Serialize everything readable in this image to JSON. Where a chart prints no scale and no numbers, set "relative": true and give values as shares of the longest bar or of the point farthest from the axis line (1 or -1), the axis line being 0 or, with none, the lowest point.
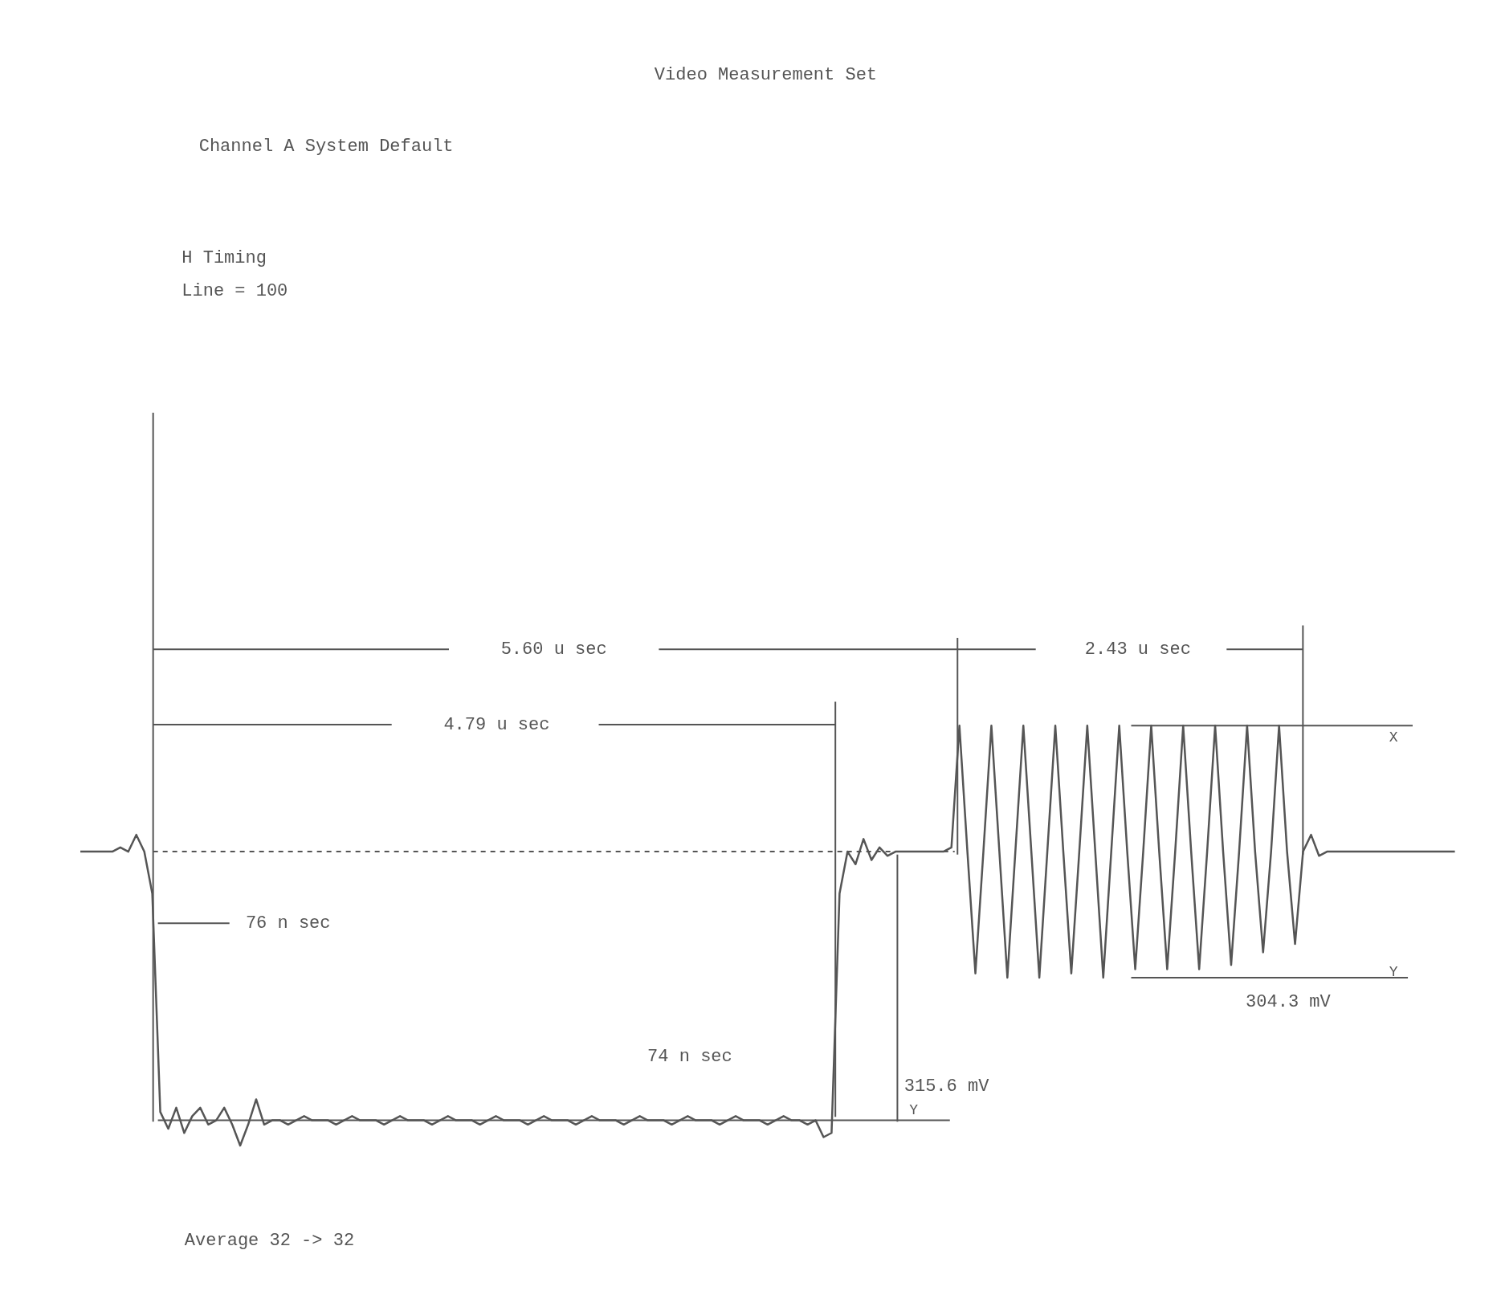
{
  "chart_data": {
    "type": "line",
    "relative": true,
    "tick_labels": false,
    "title": "Video Measurement Set",
    "categories": [
      null,
      null,
      null,
      null,
      null,
      null,
      null,
      null,
      null,
      null,
      null,
      null,
      null,
      null,
      null,
      null,
      null,
      null,
      null,
      null,
      null,
      null,
      null,
      null,
      null,
      null,
      null,
      null,
      null,
      null,
      null,
      null,
      null,
      null,
      null,
      null,
      null,
      null,
      null,
      null,
      null,
      null,
      null,
      null,
      null,
      null,
      null,
      null,
      null,
      null,
      null,
      null,
      null,
      null,
      null,
      null,
      null,
      null,
      null,
      null,
      null,
      null,
      null,
      null,
      null,
      null,
      null,
      null,
      null,
      null,
      null,
      null,
      null,
      null,
      null,
      null,
      null,
      null,
      null,
      null,
      null,
      null,
      null,
      null,
      null,
      null,
      null,
      null,
      null,
      null,
      null,
      null,
      null,
      null,
      null,
      null,
      null,
      null,
      null,
      null,
      null,
      null,
      null,
      null,
      null,
      null,
      null,
      null,
      null,
      null,
      null,
      null,
      null,
      null,
      null,
      null,
      null,
      null,
      null,
      null,
      null,
      null,
      null,
      null,
      null,
      null,
      null,
      null,
      null,
      null,
      null,
      null,
      null,
      null,
      null,
      null,
      null,
      null,
      null,
      null,
      null,
      null,
      null,
      null,
      null,
      null,
      null,
      null,
      null,
      null,
      null,
      null,
      null,
      null,
      null,
      null,
      null,
      null,
      null,
      null,
      null,
      null,
      null,
      null,
      null,
      null,
      null,
      null,
      null,
      null,
      null,
      null,
      null
    ],
    "series": [
      {
        "color": "#555555",
        "line_style": "solid",
        "values": [
          0.7,
          0.7,
          0.7,
          0.7,
          0.7,
          0.71,
          0.7,
          0.74,
          0.7,
          0.6,
          0.08,
          0.04,
          0.09,
          0.03,
          0.07,
          0.09,
          0.05,
          0.06,
          0.09,
          0.05,
          0.0,
          0.05,
          0.11,
          0.05,
          0.06,
          0.06,
          0.05,
          0.06,
          0.07,
          0.06,
          0.06,
          0.06,
          0.05,
          0.06,
          0.07,
          0.06,
          0.06,
          0.06,
          0.05,
          0.06,
          0.07,
          0.06,
          0.06,
          0.06,
          0.05,
          0.06,
          0.07,
          0.06,
          0.06,
          0.06,
          0.05,
          0.06,
          0.07,
          0.06,
          0.06,
          0.06,
          0.05,
          0.06,
          0.07,
          0.06,
          0.06,
          0.06,
          0.05,
          0.06,
          0.07,
          0.06,
          0.06,
          0.06,
          0.05,
          0.06,
          0.07,
          0.06,
          0.06,
          0.06,
          0.05,
          0.06,
          0.07,
          0.06,
          0.06,
          0.06,
          0.05,
          0.06,
          0.07,
          0.06,
          0.06,
          0.06,
          0.05,
          0.06,
          0.07,
          0.06,
          0.06,
          0.05,
          0.06,
          0.02,
          0.03,
          0.6,
          0.7,
          0.67,
          0.73,
          0.68,
          0.71,
          0.69,
          0.7,
          0.7,
          0.7,
          0.7,
          0.7,
          0.7,
          0.7,
          0.71,
          1.0,
          0.7,
          0.41,
          0.7,
          1.0,
          0.7,
          0.4,
          0.7,
          1.0,
          0.7,
          0.4,
          0.7,
          1.0,
          0.7,
          0.41,
          0.7,
          1.0,
          0.7,
          0.4,
          0.7,
          1.0,
          0.7,
          0.42,
          0.7,
          1.0,
          0.7,
          0.42,
          0.7,
          1.0,
          0.7,
          0.42,
          0.7,
          1.0,
          0.7,
          0.43,
          0.7,
          1.0,
          0.7,
          0.46,
          0.7,
          1.0,
          0.7,
          0.48,
          0.7,
          0.74,
          0.69,
          0.7,
          0.7,
          0.7,
          0.7,
          0.7,
          0.7,
          0.7,
          0.7,
          0.7,
          0.7,
          0.7,
          0.7,
          0.7,
          0.7,
          0.7,
          0.7,
          0.7
        ]
      }
    ],
    "ref_lines": [
      {
        "axis": "y",
        "value": 1.0,
        "label": "X"
      },
      {
        "axis": "y",
        "value": 0.4,
        "label": "Y"
      },
      {
        "axis": "y",
        "value": 0.06,
        "label": "Y"
      },
      {
        "axis": "y",
        "value": 0.7,
        "line_style": "dashed"
      }
    ],
    "annotations": [
      "Channel A  System Default",
      "H Timing",
      "Line = 100",
      "5.60 u sec",
      "4.79 u sec",
      "2.43 u sec",
      "76 n sec",
      "74 n sec",
      "315.6 mV",
      "304.3 mV",
      "Average  32 -> 32"
    ]
  }
}
